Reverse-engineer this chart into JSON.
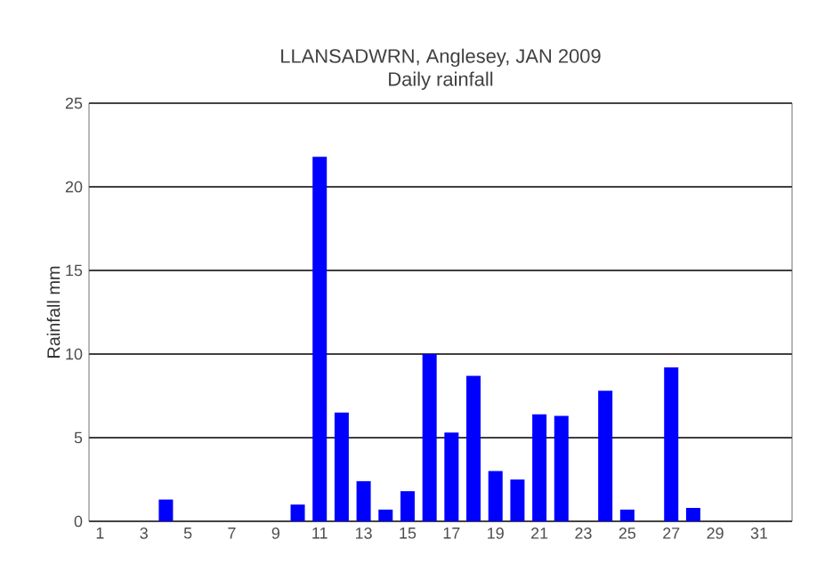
{
  "chart_data": {
    "type": "bar",
    "title": "LLANSADWRN, Anglesey, JAN 2009",
    "subtitle": "Daily rainfall",
    "ylabel": "Rainfall mm",
    "x": [
      1,
      2,
      3,
      4,
      5,
      6,
      7,
      8,
      9,
      10,
      11,
      12,
      13,
      14,
      15,
      16,
      17,
      18,
      19,
      20,
      21,
      22,
      23,
      24,
      25,
      26,
      27,
      28,
      29,
      30,
      31
    ],
    "values": [
      0,
      0,
      0,
      1.3,
      0,
      0,
      0,
      0,
      0,
      1.0,
      21.8,
      6.5,
      2.4,
      0.7,
      1.8,
      10.0,
      5.3,
      8.7,
      3.0,
      2.5,
      6.4,
      6.3,
      0,
      7.8,
      0.7,
      0,
      9.2,
      0.8,
      0,
      0,
      0
    ],
    "color": "#0000ff",
    "xlim": [
      0.5,
      32.5
    ],
    "xticks": [
      1,
      3,
      5,
      7,
      9,
      11,
      13,
      15,
      17,
      19,
      21,
      23,
      25,
      27,
      29,
      31
    ],
    "ylim": [
      0,
      25
    ],
    "yticks": [
      0,
      5,
      10,
      15,
      20,
      25
    ],
    "grid": "y"
  }
}
